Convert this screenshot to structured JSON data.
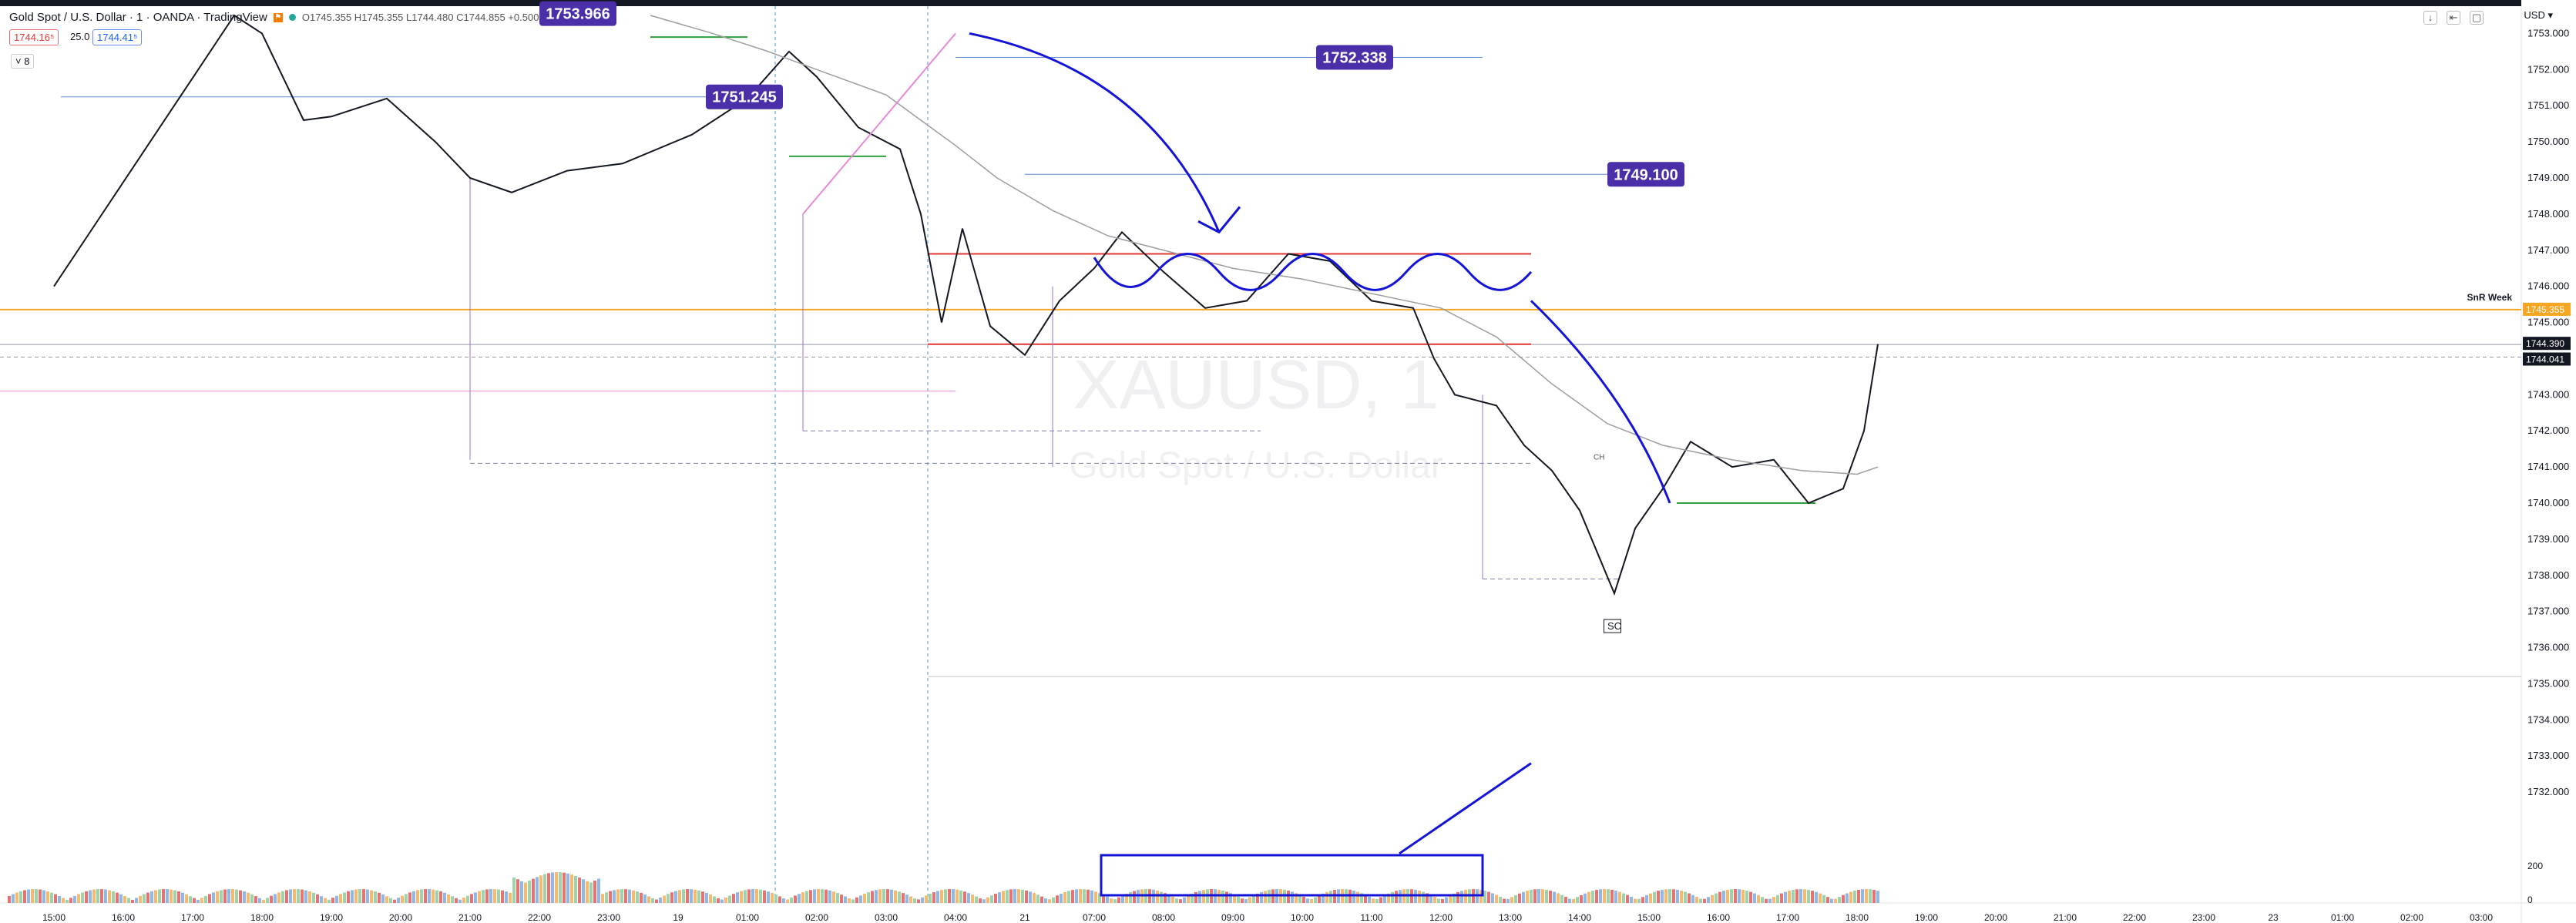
{
  "header": {
    "title": "Gold Spot / U.S. Dollar · 1 · OANDA · TradingView",
    "ohlc": "O1745.355 H1745.355 L1744.480 C1744.855 +0.500",
    "bid": "1744.16⁵",
    "spread": "25.0",
    "ask": "1744.41⁵",
    "collapse": "˅ 8",
    "currency": "USD ▾"
  },
  "watermark": {
    "symbol": "XAUUSD, 1",
    "name": "Gold Spot / U.S. Dollar"
  },
  "chart_data": {
    "type": "line",
    "symbol": "XAUUSD",
    "timeframe": "1",
    "ylim": [
      1731.0,
      1753.5
    ],
    "y_ticks": [
      "1753.000",
      "1752.000",
      "1751.000",
      "1750.000",
      "1749.000",
      "1748.000",
      "1747.000",
      "1746.000",
      "1745.000",
      "1744.000",
      "1743.000",
      "1742.000",
      "1741.000",
      "1740.000",
      "1739.000",
      "1738.000",
      "1737.000",
      "1736.000",
      "1735.000",
      "1734.000",
      "1733.000",
      "1732.000"
    ],
    "x_ticks": [
      "15:00",
      "16:00",
      "17:00",
      "18:00",
      "19:00",
      "20:00",
      "21:00",
      "22:00",
      "23:00",
      "19",
      "01:00",
      "02:00",
      "03:00",
      "04:00",
      "21",
      "07:00",
      "08:00",
      "09:00",
      "10:00",
      "11:00",
      "12:00",
      "13:00",
      "14:00",
      "15:00",
      "16:00",
      "17:00",
      "18:00",
      "19:00",
      "20:00",
      "21:00",
      "22:00",
      "23:00",
      "23",
      "01:00",
      "02:00",
      "03:00"
    ],
    "price_labels": [
      {
        "text": "1753.966",
        "y": 1753.55
      },
      {
        "text": "1752.338",
        "y": 1752.338
      },
      {
        "text": "1751.245",
        "y": 1751.245
      },
      {
        "text": "1749.100",
        "y": 1749.1
      }
    ],
    "srn_week": {
      "label": "SnR Week",
      "value": "1745.355",
      "y": 1745.355
    },
    "last_price": {
      "value": "1744.390",
      "y": 1744.39
    },
    "bid_price": {
      "value": "1744.041",
      "y": 1744.041
    },
    "annotations": [
      "SC",
      "CH"
    ],
    "volume_axis": [
      "200",
      "0"
    ],
    "price_path": [
      [
        0.0,
        1746.0
      ],
      [
        2.6,
        1753.5
      ],
      [
        3.0,
        1753.0
      ],
      [
        3.6,
        1750.6
      ],
      [
        4.0,
        1750.7
      ],
      [
        4.8,
        1751.2
      ],
      [
        5.5,
        1750.0
      ],
      [
        6.0,
        1749.0
      ],
      [
        6.6,
        1748.6
      ],
      [
        7.4,
        1749.2
      ],
      [
        8.2,
        1749.4
      ],
      [
        9.2,
        1750.2
      ],
      [
        10.0,
        1751.2
      ],
      [
        10.6,
        1752.5
      ],
      [
        11.0,
        1751.8
      ],
      [
        11.6,
        1750.4
      ],
      [
        12.2,
        1749.8
      ],
      [
        12.5,
        1748.0
      ],
      [
        12.8,
        1745.0
      ],
      [
        13.1,
        1747.6
      ],
      [
        13.5,
        1744.9
      ],
      [
        14.0,
        1744.1
      ],
      [
        14.5,
        1745.6
      ],
      [
        15.0,
        1746.5
      ],
      [
        15.4,
        1747.5
      ],
      [
        16.0,
        1746.4
      ],
      [
        16.6,
        1745.4
      ],
      [
        17.2,
        1745.6
      ],
      [
        17.8,
        1746.9
      ],
      [
        18.4,
        1746.7
      ],
      [
        19.0,
        1745.6
      ],
      [
        19.6,
        1745.4
      ],
      [
        19.9,
        1744.0
      ],
      [
        20.2,
        1743.0
      ],
      [
        20.8,
        1742.7
      ],
      [
        21.2,
        1741.6
      ],
      [
        21.6,
        1740.9
      ],
      [
        22.0,
        1739.8
      ],
      [
        22.5,
        1737.5
      ],
      [
        22.8,
        1739.3
      ],
      [
        23.2,
        1740.4
      ],
      [
        23.6,
        1741.7
      ],
      [
        24.2,
        1741.0
      ],
      [
        24.8,
        1741.2
      ],
      [
        25.3,
        1740.0
      ],
      [
        25.8,
        1740.4
      ],
      [
        26.1,
        1742.0
      ],
      [
        26.3,
        1744.4
      ]
    ],
    "ma_path": [
      [
        8.6,
        1753.5
      ],
      [
        9.5,
        1753.0
      ],
      [
        10.3,
        1752.5
      ],
      [
        11.0,
        1752.0
      ],
      [
        12.0,
        1751.3
      ],
      [
        12.5,
        1750.6
      ],
      [
        13.0,
        1749.9
      ],
      [
        13.6,
        1749.0
      ],
      [
        14.4,
        1748.1
      ],
      [
        15.2,
        1747.4
      ],
      [
        16.0,
        1747.0
      ],
      [
        17.0,
        1746.5
      ],
      [
        18.0,
        1746.2
      ],
      [
        19.0,
        1745.8
      ],
      [
        20.0,
        1745.4
      ],
      [
        20.8,
        1744.6
      ],
      [
        21.6,
        1743.3
      ],
      [
        22.4,
        1742.2
      ],
      [
        23.2,
        1741.6
      ],
      [
        24.2,
        1741.2
      ],
      [
        25.2,
        1740.9
      ],
      [
        26.0,
        1740.8
      ],
      [
        26.3,
        1741.0
      ]
    ]
  }
}
